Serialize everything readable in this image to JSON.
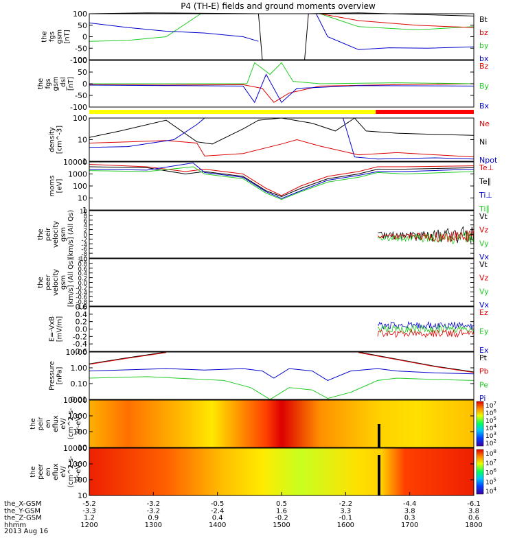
{
  "title": "P4 (TH-E) fields and ground moments overview",
  "date_label": "2013 Aug 16",
  "colors": {
    "black": "#000000",
    "red": "#dd0000",
    "green": "#22cc22",
    "blue": "#0000cc",
    "yellow": "#ffff00",
    "cbar_red": "#ff0000"
  },
  "chart_data": [
    {
      "id": "fgs",
      "type": "line",
      "ylabel": [
        "the",
        "fgs",
        "gsm",
        "[nT]"
      ],
      "ylim": [
        -100,
        100
      ],
      "yticks": [
        "100",
        "50",
        "0",
        "-50",
        "-100"
      ],
      "legend": [
        {
          "name": "Bt",
          "color": "#000000"
        },
        {
          "name": "bz",
          "color": "#dd0000"
        },
        {
          "name": "by",
          "color": "#22cc22"
        },
        {
          "name": "bx",
          "color": "#0000cc"
        }
      ]
    },
    {
      "id": "fgs_dsl",
      "type": "line",
      "ylabel": [
        "the",
        "fgs",
        "gsm",
        "_dsl",
        "[nT]"
      ],
      "ylim": [
        -120,
        120
      ],
      "yticks": [
        "100",
        "50",
        "0",
        "-50",
        "-100"
      ],
      "legend": [
        {
          "name": "Bz",
          "color": "#dd0000"
        },
        {
          "name": "By",
          "color": "#22cc22"
        },
        {
          "name": "Bx",
          "color": "#0000cc"
        }
      ]
    },
    {
      "id": "density",
      "type": "line",
      "ylabel": [
        "density",
        "[cm^-3]"
      ],
      "ylim": [
        0.3,
        150
      ],
      "yticks": [
        "100",
        "10",
        "1"
      ],
      "yscale": "log",
      "legend": [
        {
          "name": "Ne",
          "color": "#dd0000"
        },
        {
          "name": "Ni",
          "color": "#000000"
        },
        {
          "name": "Npot",
          "color": "#0000cc"
        }
      ]
    },
    {
      "id": "temp",
      "type": "line",
      "ylabel": [
        "moms",
        "[eV]"
      ],
      "ylim": [
        1,
        15000
      ],
      "yticks": [
        "10000",
        "1000",
        "100",
        "10",
        "1"
      ],
      "yscale": "log",
      "legend": [
        {
          "name": "Te⊥",
          "color": "#dd0000"
        },
        {
          "name": "Te∥",
          "color": "#000000"
        },
        {
          "name": "Ti⊥",
          "color": "#0000cc"
        },
        {
          "name": "Ti∥",
          "color": "#22cc22"
        }
      ]
    },
    {
      "id": "vel_peir",
      "type": "line",
      "ylabel": [
        "the",
        "peir",
        "velocity",
        "gsm",
        "[km/s] (All Qs)"
      ],
      "ylim": [
        -10,
        10
      ],
      "yticks": [
        "10",
        "8",
        "6",
        "4",
        "2",
        "0",
        "-2",
        "-4",
        "-6",
        "-8",
        "-10"
      ],
      "legend": [
        {
          "name": "Vt",
          "color": "#000000"
        },
        {
          "name": "Vz",
          "color": "#dd0000"
        },
        {
          "name": "Vy",
          "color": "#22cc22"
        },
        {
          "name": "Vx",
          "color": "#0000cc"
        }
      ]
    },
    {
      "id": "vel_peer",
      "type": "line",
      "ylabel": [
        "the",
        "peer",
        "velocity",
        "gsm",
        "[km/s] (All Qs)"
      ],
      "ylim": [
        -1,
        1
      ],
      "yticks": [
        "1.0",
        "0.8",
        "0.6",
        "0.4",
        "0.2",
        "0.0",
        "-0.2",
        "-0.4",
        "-0.6",
        "-0.8",
        "-1.0"
      ],
      "legend": [
        {
          "name": "Vt",
          "color": "#000000"
        },
        {
          "name": "Vz",
          "color": "#dd0000"
        },
        {
          "name": "Vy",
          "color": "#22cc22"
        },
        {
          "name": "Vx",
          "color": "#0000cc"
        }
      ]
    },
    {
      "id": "efield",
      "type": "line",
      "ylabel": [
        "E=-VxB",
        "[mV/m]"
      ],
      "ylim": [
        -0.6,
        0.6
      ],
      "yticks": [
        "0.6",
        "0.4",
        "0.2",
        "0.0",
        "-0.2",
        "-0.4",
        "-0.6"
      ],
      "legend": [
        {
          "name": "Ez",
          "color": "#dd0000"
        },
        {
          "name": "Ey",
          "color": "#22cc22"
        },
        {
          "name": "Ex",
          "color": "#0000cc"
        }
      ]
    },
    {
      "id": "pressure",
      "type": "line",
      "ylabel": [
        "Pressure",
        "[nPa]"
      ],
      "ylim": [
        0.01,
        30
      ],
      "yticks": [
        "10.00",
        "1.00",
        "0.10",
        "0.01"
      ],
      "yscale": "log",
      "legend": [
        {
          "name": "Pt",
          "color": "#000000"
        },
        {
          "name": "Pb",
          "color": "#dd0000"
        },
        {
          "name": "Pe",
          "color": "#22cc22"
        },
        {
          "name": "Pi",
          "color": "#0000cc"
        }
      ]
    },
    {
      "id": "peir_spec",
      "type": "heatmap",
      "ylabel": [
        "the",
        "peir",
        "en",
        "eflux",
        "eV/",
        "(cm^2-s-",
        "sr-eV)"
      ],
      "yticks": [
        "10000",
        "1000",
        "100",
        "10"
      ],
      "yscale": "log",
      "cbar_ticks": [
        "10^7",
        "10^6",
        "10^5",
        "10^4",
        "10^3",
        "10^2"
      ]
    },
    {
      "id": "peer_spec",
      "type": "heatmap",
      "ylabel": [
        "the",
        "peer",
        "en",
        "eflux",
        "eV/",
        "(cm^2-s-",
        "sr-eV)"
      ],
      "yticks": [
        "10000",
        "1000",
        "100",
        "10"
      ],
      "yscale": "log",
      "cbar_ticks": [
        "10^8",
        "10^7",
        "10^6",
        "10^5",
        "10^4"
      ]
    }
  ],
  "xaxis": {
    "rows": [
      {
        "name": "the_X-GSM",
        "values": [
          "-5.2",
          "-3.2",
          "-0.5",
          "0.5",
          "-2.2",
          "-4.4",
          "-6.1"
        ]
      },
      {
        "name": "the_Y-GSM",
        "values": [
          "-3.3",
          "-3.2",
          "-2.4",
          "1.6",
          "3.3",
          "3.8",
          "3.8"
        ]
      },
      {
        "name": "the_Z-GSM",
        "values": [
          "1.2",
          "0.9",
          "0.4",
          "-0.2",
          "-0.1",
          "0.3",
          "0.6"
        ]
      },
      {
        "name": "hhmm",
        "values": [
          "1200",
          "1300",
          "1400",
          "1500",
          "1600",
          "1700",
          "1800"
        ]
      }
    ]
  }
}
